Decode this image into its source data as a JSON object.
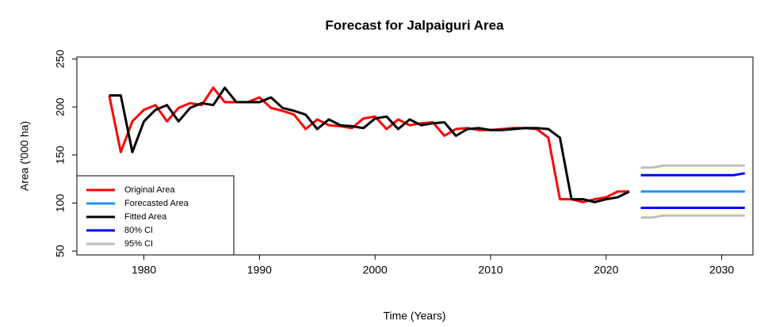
{
  "chart_data": {
    "type": "line",
    "title": "Forecast for Jalpaiguri Area",
    "x_label": "Time (Years)",
    "y_label": "Area ('000 ha)",
    "xlim": [
      1974.2,
      2032.7
    ],
    "ylim": [
      46,
      252
    ],
    "xticks": [
      1980,
      1990,
      2000,
      2010,
      2020,
      2030
    ],
    "yticks": [
      50,
      100,
      150,
      200,
      250
    ],
    "legend": "bottom-left",
    "series": [
      {
        "name": "Original Area",
        "color": "#ff0000",
        "x": [
          1977,
          1978,
          1979,
          1980,
          1981,
          1982,
          1983,
          1984,
          1985,
          1986,
          1987,
          1988,
          1989,
          1990,
          1991,
          1992,
          1993,
          1994,
          1995,
          1996,
          1997,
          1998,
          1999,
          2000,
          2001,
          2002,
          2003,
          2004,
          2005,
          2006,
          2007,
          2008,
          2009,
          2010,
          2011,
          2012,
          2013,
          2014,
          2015,
          2016,
          2017,
          2018,
          2019,
          2020,
          2021,
          2022
        ],
        "values": [
          212,
          153,
          185,
          197,
          202,
          185,
          199,
          204,
          202,
          220,
          205,
          205,
          205,
          210,
          199,
          196,
          192,
          177,
          187,
          181,
          180,
          178,
          188,
          190,
          177,
          187,
          181,
          183,
          184,
          170,
          177,
          178,
          176,
          176,
          177,
          178,
          178,
          177,
          168,
          104,
          104,
          101,
          104,
          106,
          112,
          112
        ]
      },
      {
        "name": "Forecasted Area",
        "color": "#1e90ff",
        "x": [
          2023,
          2024,
          2025,
          2026,
          2027,
          2028,
          2029,
          2030,
          2031,
          2032
        ],
        "values": [
          112,
          112,
          112,
          112,
          112,
          112,
          112,
          112,
          112,
          112
        ]
      },
      {
        "name": "Fitted Area",
        "color": "#000000",
        "x": [
          1977,
          1978,
          1979,
          1980,
          1981,
          1982,
          1983,
          1984,
          1985,
          1986,
          1987,
          1988,
          1989,
          1990,
          1991,
          1992,
          1993,
          1994,
          1995,
          1996,
          1997,
          1998,
          1999,
          2000,
          2001,
          2002,
          2003,
          2004,
          2005,
          2006,
          2007,
          2008,
          2009,
          2010,
          2011,
          2012,
          2013,
          2014,
          2015,
          2016,
          2017,
          2018,
          2019,
          2020,
          2021,
          2022
        ],
        "values": [
          212,
          212,
          153,
          185,
          197,
          202,
          185,
          199,
          204,
          202,
          220,
          205,
          205,
          205,
          210,
          199,
          196,
          192,
          177,
          187,
          181,
          180,
          178,
          188,
          190,
          177,
          187,
          181,
          183,
          184,
          170,
          177,
          178,
          176,
          176,
          177,
          178,
          178,
          177,
          168,
          104,
          104,
          101,
          104,
          106,
          112
        ]
      },
      {
        "name": "80% CI",
        "color": "#0000ff",
        "x": [
          2023,
          2024,
          2025,
          2026,
          2027,
          2028,
          2029,
          2030,
          2031,
          2032
        ],
        "values": [
          129,
          129,
          129,
          129,
          129,
          129,
          129,
          129,
          129,
          131
        ],
        "lower": [
          95,
          95,
          95,
          95,
          95,
          95,
          95,
          95,
          95,
          95
        ]
      },
      {
        "name": "95% CI",
        "color": "#bebebe",
        "x": [
          2023,
          2024,
          2025,
          2026,
          2027,
          2028,
          2029,
          2030,
          2031,
          2032
        ],
        "values": [
          137,
          137,
          139,
          139,
          139,
          139,
          139,
          139,
          139,
          139
        ],
        "lower": [
          85,
          85,
          87,
          87,
          87,
          87,
          87,
          87,
          87,
          87
        ]
      }
    ]
  }
}
